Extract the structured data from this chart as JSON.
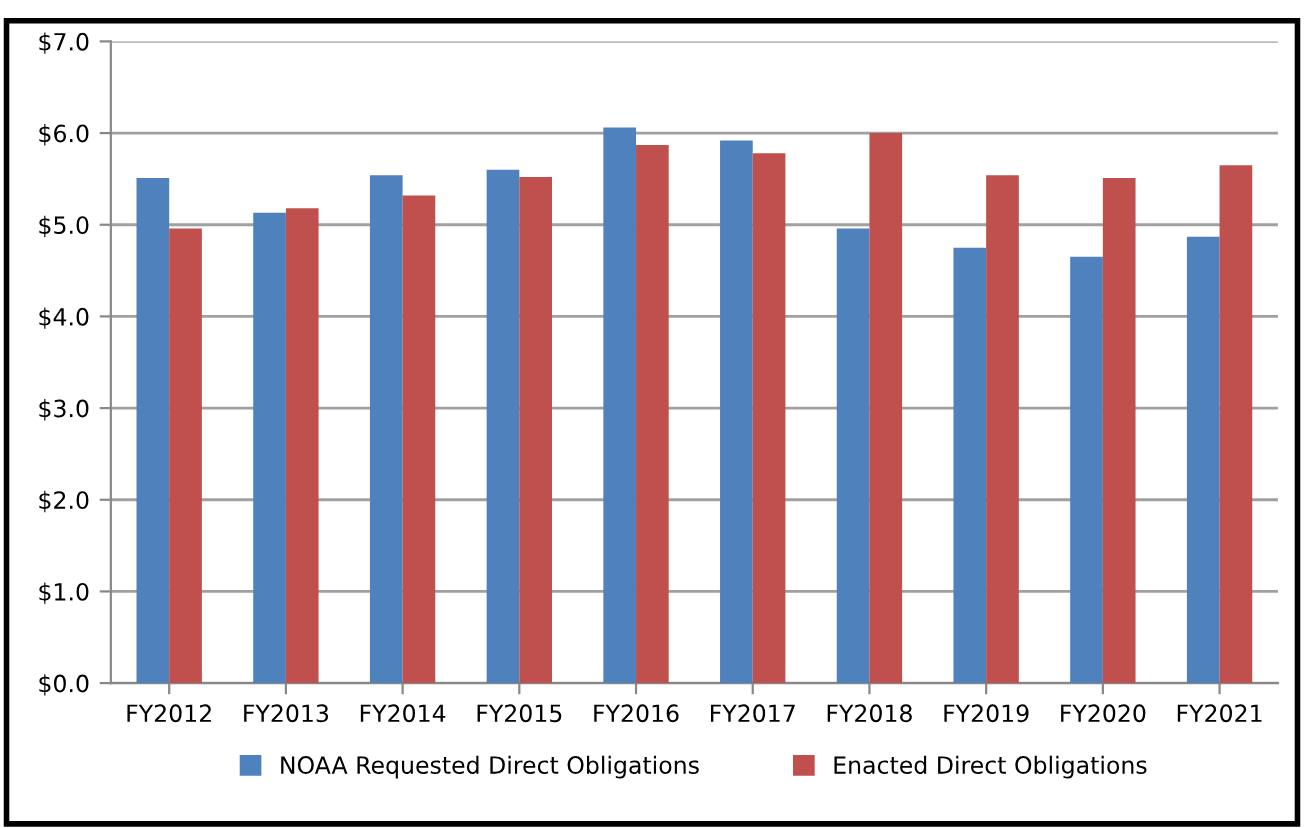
{
  "chart_data": {
    "type": "bar",
    "categories": [
      "FY2012",
      "FY2013",
      "FY2014",
      "FY2015",
      "FY2016",
      "FY2017",
      "FY2018",
      "FY2019",
      "FY2020",
      "FY2021"
    ],
    "series": [
      {
        "name": "NOAA Requested Direct Obligations",
        "color": "#4f81bd",
        "values": [
          5.51,
          5.13,
          5.54,
          5.6,
          6.06,
          5.92,
          4.96,
          4.75,
          4.65,
          4.87
        ]
      },
      {
        "name": "Enacted Direct Obligations",
        "color": "#c0504d",
        "values": [
          4.96,
          5.18,
          5.32,
          5.52,
          5.87,
          5.78,
          6.0,
          5.54,
          5.51,
          5.65
        ]
      }
    ],
    "ylim": [
      0,
      7
    ],
    "yticks": [
      {
        "value": 0,
        "label": "$0.0"
      },
      {
        "value": 1,
        "label": "$1.0"
      },
      {
        "value": 2,
        "label": "$2.0"
      },
      {
        "value": 3,
        "label": "$3.0"
      },
      {
        "value": 4,
        "label": "$4.0"
      },
      {
        "value": 5,
        "label": "$5.0"
      },
      {
        "value": 6,
        "label": "$6.0"
      },
      {
        "value": 7,
        "label": "$7.0"
      }
    ],
    "grid": "y",
    "legend": "bottom"
  }
}
